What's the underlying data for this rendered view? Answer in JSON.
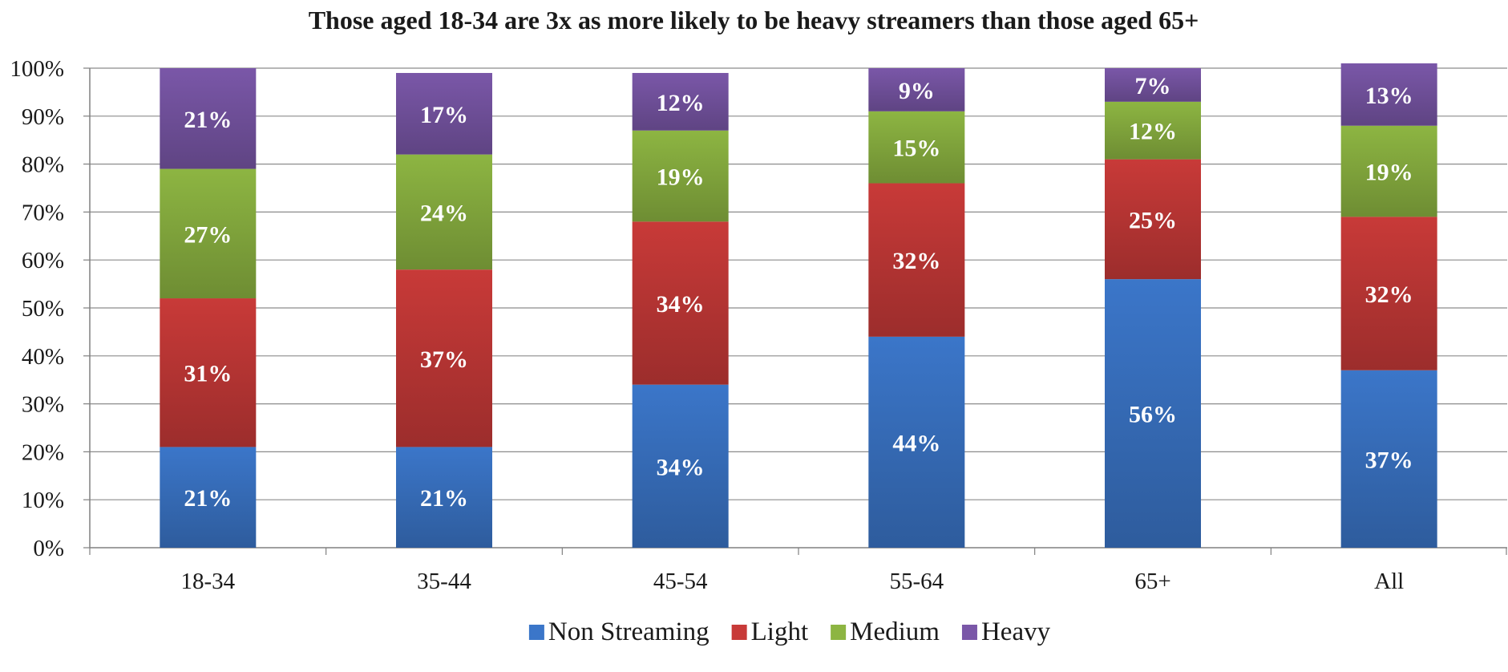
{
  "chart_data": {
    "type": "bar",
    "stacked": true,
    "title": "Those aged 18-34 are 3x as more likely to be heavy streamers than those aged 65+",
    "xlabel": "",
    "ylabel": "",
    "categories": [
      "18-34",
      "35-44",
      "45-54",
      "55-64",
      "65+",
      "All"
    ],
    "ylim": [
      0,
      100
    ],
    "yticks": [
      "0%",
      "10%",
      "20%",
      "30%",
      "40%",
      "50%",
      "60%",
      "70%",
      "80%",
      "90%",
      "100%"
    ],
    "grid": true,
    "legend_position": "bottom",
    "series": [
      {
        "name": "Non Streaming",
        "color": "#3b76c9",
        "values": [
          21,
          21,
          34,
          44,
          56,
          37
        ],
        "labels": [
          "21%",
          "21%",
          "34%",
          "44%",
          "56%",
          "37%"
        ]
      },
      {
        "name": "Light",
        "color": "#c83a38",
        "values": [
          31,
          37,
          34,
          32,
          25,
          32
        ],
        "labels": [
          "31%",
          "37%",
          "34%",
          "32%",
          "25%",
          "32%"
        ]
      },
      {
        "name": "Medium",
        "color": "#8db542",
        "values": [
          27,
          24,
          19,
          15,
          12,
          19
        ],
        "labels": [
          "27%",
          "24%",
          "19%",
          "15%",
          "12%",
          "19%"
        ]
      },
      {
        "name": "Heavy",
        "color": "#7a57a8",
        "values": [
          21,
          17,
          12,
          9,
          7,
          13
        ],
        "labels": [
          "21%",
          "17%",
          "12%",
          "9%",
          "7%",
          "13%"
        ]
      }
    ]
  }
}
